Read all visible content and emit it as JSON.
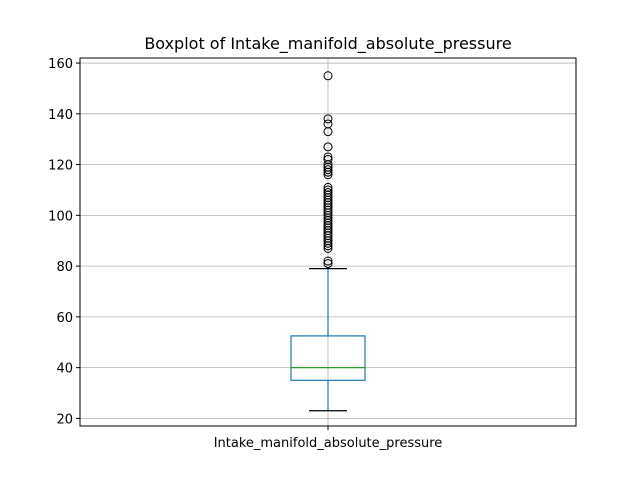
{
  "chart_data": {
    "type": "box",
    "title": "Boxplot of Intake_manifold_absolute_pressure",
    "xlabel": "",
    "ylabel": "",
    "categories": [
      "Intake_manifold_absolute_pressure"
    ],
    "ylim": [
      17,
      162
    ],
    "yticks": [
      20,
      40,
      60,
      80,
      100,
      120,
      140,
      160
    ],
    "grid": true,
    "box": {
      "whisker_low": 23,
      "q1": 35,
      "median": 40,
      "q3": 52.5,
      "whisker_high": 79
    },
    "outliers": [
      81,
      82,
      87,
      88,
      89,
      90,
      91,
      92,
      93,
      94,
      95,
      96,
      97,
      98,
      99,
      100,
      101,
      102,
      103,
      104,
      105,
      106,
      107,
      108,
      109,
      110,
      111,
      116,
      117,
      118,
      119,
      120,
      122,
      123,
      127,
      133,
      136,
      138,
      155
    ],
    "colors": {
      "box": "#1f77b4",
      "median": "#2ca02c",
      "whisker": "#1f77b4",
      "cap": "#000000",
      "flier": "#000000",
      "grid": "#b0b0b0"
    }
  }
}
